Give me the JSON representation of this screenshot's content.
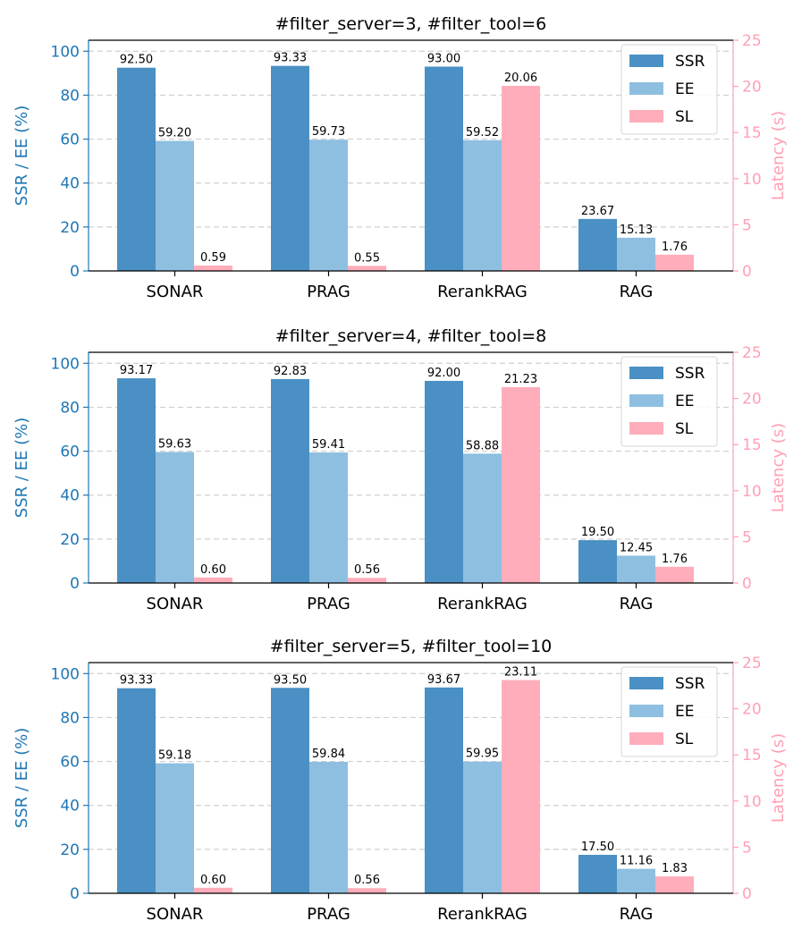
{
  "legend": [
    "SSR",
    "EE",
    "SL"
  ],
  "colors": {
    "SSR": "#4a90c4",
    "EE": "#8ebfe0",
    "SL": "#ffadbb",
    "left_axis": "#1f77b4",
    "right_axis": "#ffa0b4"
  },
  "chart_data": [
    {
      "type": "bar",
      "title": "#filter_server=3, #filter_tool=6",
      "categories": [
        "SONAR",
        "PRAG",
        "RerankRAG",
        "RAG"
      ],
      "ylabel": "SSR / EE (%)",
      "y2label": "Latency (s)",
      "ylim": [
        0,
        105
      ],
      "y2lim": [
        0,
        25
      ],
      "yticks": [
        "0",
        "20",
        "40",
        "60",
        "80",
        "100"
      ],
      "y2ticks": [
        "0",
        "5",
        "10",
        "15",
        "20",
        "25"
      ],
      "legend_position": "top-right",
      "series": [
        {
          "name": "SSR",
          "axis": "left",
          "values": [
            92.5,
            93.33,
            93.0,
            23.67
          ],
          "labels": [
            "92.50",
            "93.33",
            "93.00",
            "23.67"
          ]
        },
        {
          "name": "EE",
          "axis": "left",
          "values": [
            59.2,
            59.73,
            59.52,
            15.13
          ],
          "labels": [
            "59.20",
            "59.73",
            "59.52",
            "15.13"
          ]
        },
        {
          "name": "SL",
          "axis": "right",
          "values": [
            0.59,
            0.55,
            20.06,
            1.76
          ],
          "labels": [
            "0.59",
            "0.55",
            "20.06",
            "1.76"
          ]
        }
      ]
    },
    {
      "type": "bar",
      "title": "#filter_server=4, #filter_tool=8",
      "categories": [
        "SONAR",
        "PRAG",
        "RerankRAG",
        "RAG"
      ],
      "ylabel": "SSR / EE (%)",
      "y2label": "Latency (s)",
      "ylim": [
        0,
        105
      ],
      "y2lim": [
        0,
        25
      ],
      "yticks": [
        "0",
        "20",
        "40",
        "60",
        "80",
        "100"
      ],
      "y2ticks": [
        "0",
        "5",
        "10",
        "15",
        "20",
        "25"
      ],
      "legend_position": "top-right",
      "series": [
        {
          "name": "SSR",
          "axis": "left",
          "values": [
            93.17,
            92.83,
            92.0,
            19.5
          ],
          "labels": [
            "93.17",
            "92.83",
            "92.00",
            "19.50"
          ]
        },
        {
          "name": "EE",
          "axis": "left",
          "values": [
            59.63,
            59.41,
            58.88,
            12.45
          ],
          "labels": [
            "59.63",
            "59.41",
            "58.88",
            "12.45"
          ]
        },
        {
          "name": "SL",
          "axis": "right",
          "values": [
            0.6,
            0.56,
            21.23,
            1.76
          ],
          "labels": [
            "0.60",
            "0.56",
            "21.23",
            "1.76"
          ]
        }
      ]
    },
    {
      "type": "bar",
      "title": "#filter_server=5, #filter_tool=10",
      "categories": [
        "SONAR",
        "PRAG",
        "RerankRAG",
        "RAG"
      ],
      "ylabel": "SSR / EE (%)",
      "y2label": "Latency (s)",
      "ylim": [
        0,
        105
      ],
      "y2lim": [
        0,
        25
      ],
      "yticks": [
        "0",
        "20",
        "40",
        "60",
        "80",
        "100"
      ],
      "y2ticks": [
        "0",
        "5",
        "10",
        "15",
        "20",
        "25"
      ],
      "legend_position": "top-right",
      "series": [
        {
          "name": "SSR",
          "axis": "left",
          "values": [
            93.33,
            93.5,
            93.67,
            17.5
          ],
          "labels": [
            "93.33",
            "93.50",
            "93.67",
            "17.50"
          ]
        },
        {
          "name": "EE",
          "axis": "left",
          "values": [
            59.18,
            59.84,
            59.95,
            11.16
          ],
          "labels": [
            "59.18",
            "59.84",
            "59.95",
            "11.16"
          ]
        },
        {
          "name": "SL",
          "axis": "right",
          "values": [
            0.6,
            0.56,
            23.11,
            1.83
          ],
          "labels": [
            "0.60",
            "0.56",
            "23.11",
            "1.83"
          ]
        }
      ]
    }
  ]
}
